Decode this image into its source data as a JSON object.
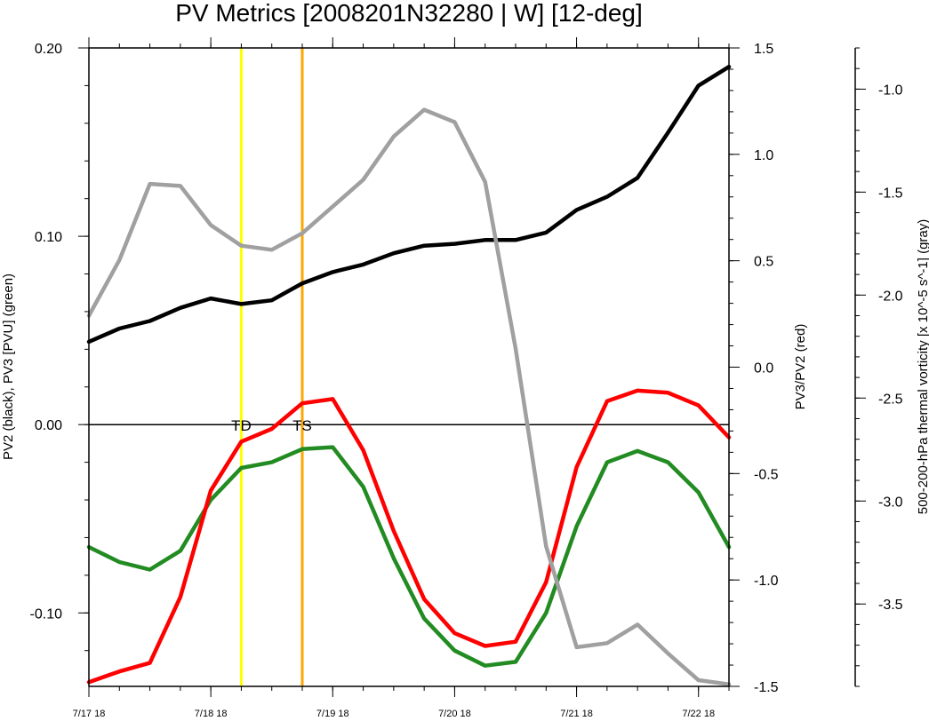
{
  "chart_data": {
    "type": "line",
    "title": "PV Metrics [2008201N32280 | W] [12-deg]",
    "x_tick_labels": [
      "7/17 18",
      "7/18 18",
      "7/19 18",
      "7/20 18",
      "7/21 18",
      "7/22 18"
    ],
    "x_tick_days": [
      0,
      1,
      2,
      3,
      4,
      5
    ],
    "x_step_days": 0.25,
    "xlim": [
      0,
      5.25
    ],
    "axes": {
      "left": {
        "label": "PV2 (black), PV3 [PVU] (green)",
        "ylim": [
          -0.139,
          0.2
        ],
        "ticks": [
          "0.20",
          "0.10",
          "0.00",
          "-0.10"
        ],
        "tick_values": [
          0.2,
          0.1,
          0.0,
          -0.1
        ],
        "minor_step": 0.02
      },
      "right": {
        "label": "PV3/PV2 (red)",
        "ylim": [
          -1.5,
          1.5
        ],
        "ticks": [
          "1.5",
          "1.0",
          "0.5",
          "0.0",
          "-0.5",
          "-1.0",
          "-1.5"
        ],
        "tick_values": [
          1.5,
          1.0,
          0.5,
          0.0,
          -0.5,
          -1.0,
          -1.5
        ],
        "minor_step": 0.1
      },
      "far_right": {
        "label": "500-200-hPa thermal vorticity [x 10^-5 s^-1] (gray)",
        "ylim": [
          -3.9,
          -0.8
        ],
        "ticks": [
          "-1.0",
          "-1.5",
          "-2.0",
          "-2.5",
          "-3.0",
          "-3.5"
        ],
        "tick_values": [
          -1.0,
          -1.5,
          -2.0,
          -2.5,
          -3.0,
          -3.5
        ],
        "minor_step": 0.1
      }
    },
    "zero_line": 0.0,
    "series": [
      {
        "axis": "left",
        "color": "#000000",
        "values": [
          0.044,
          0.051,
          0.055,
          0.062,
          0.067,
          0.064,
          0.066,
          0.075,
          0.081,
          0.085,
          0.091,
          0.095,
          0.096,
          0.098,
          0.098,
          0.102,
          0.114,
          0.121,
          0.131,
          0.155,
          0.18,
          0.19
        ]
      },
      {
        "axis": "left",
        "color": "#228b22",
        "values": [
          -0.065,
          -0.073,
          -0.077,
          -0.067,
          -0.04,
          -0.023,
          -0.02,
          -0.013,
          -0.012,
          -0.033,
          -0.071,
          -0.103,
          -0.12,
          -0.128,
          -0.126,
          -0.1,
          -0.054,
          -0.02,
          -0.014,
          -0.02,
          -0.036,
          -0.065
        ]
      },
      {
        "axis": "right",
        "color": "#ff0000",
        "values": [
          -1.48,
          -1.43,
          -1.39,
          -1.08,
          -0.58,
          -0.35,
          -0.29,
          -0.17,
          -0.15,
          -0.39,
          -0.77,
          -1.09,
          -1.25,
          -1.31,
          -1.29,
          -1.01,
          -0.47,
          -0.16,
          -0.11,
          -0.12,
          -0.18,
          -0.33
        ]
      },
      {
        "axis": "far_right",
        "color": "#a0a0a0",
        "values": [
          -2.1,
          -1.83,
          -1.46,
          -1.47,
          -1.66,
          -1.76,
          -1.78,
          -1.7,
          -1.57,
          -1.44,
          -1.23,
          -1.1,
          -1.16,
          -1.45,
          -2.26,
          -3.22,
          -3.71,
          -3.69,
          -3.6,
          -3.74,
          -3.87,
          -3.89
        ]
      }
    ],
    "vertical_lines": [
      {
        "x_day": 1.25,
        "color": "#ffff00",
        "label": "TD"
      },
      {
        "x_day": 1.75,
        "color": "#ffa500",
        "label": "TS"
      }
    ]
  }
}
